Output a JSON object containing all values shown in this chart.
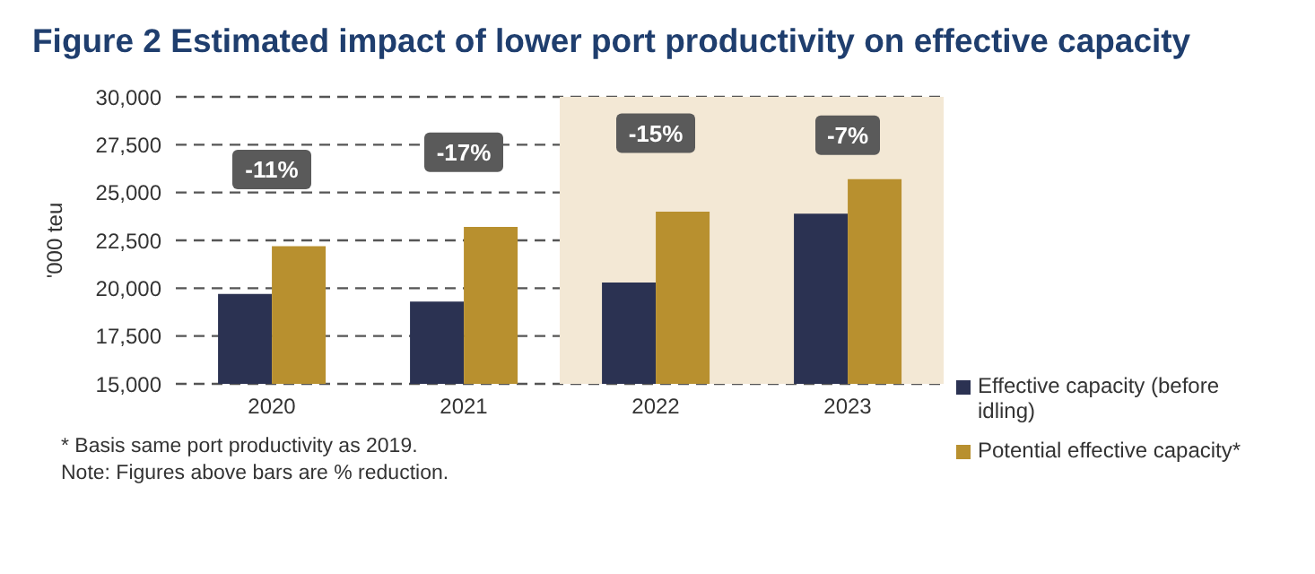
{
  "chart_data": {
    "type": "bar",
    "title": "Figure 2 Estimated impact of lower port productivity on effective capacity",
    "ylabel": "'000 teu",
    "categories": [
      "2020",
      "2021",
      "2022",
      "2023"
    ],
    "series": [
      {
        "name": "Effective capacity (before idling)",
        "color": "#2b3252",
        "values": [
          19700,
          19300,
          20300,
          23900
        ]
      },
      {
        "name": "Potential effective capacity*",
        "color": "#b8902f",
        "values": [
          22200,
          23200,
          24000,
          25700
        ]
      }
    ],
    "ylim": [
      15000,
      30000
    ],
    "yticks": [
      {
        "value": 15000,
        "label": "15,000"
      },
      {
        "value": 17500,
        "label": "17,500"
      },
      {
        "value": 20000,
        "label": "20,000"
      },
      {
        "value": 22500,
        "label": "22,500"
      },
      {
        "value": 25000,
        "label": "25,000"
      },
      {
        "value": 27500,
        "label": "27,500"
      },
      {
        "value": 30000,
        "label": "30,000"
      }
    ],
    "grid": "y",
    "legend": "right",
    "bands": [
      {
        "axis": "x",
        "from": "2022",
        "to": "2023",
        "color": "#f3e8d5"
      }
    ],
    "annotations": [
      {
        "text": "-11%",
        "x": "2020",
        "y": 26200
      },
      {
        "text": "-17%",
        "x": "2021",
        "y": 27100
      },
      {
        "text": "-15%",
        "x": "2022",
        "y": 28100
      },
      {
        "text": "-7%",
        "x": "2023",
        "y": 28000
      },
      "* Basis same port productivity as 2019.",
      "Note: Figures above bars are % reduction."
    ]
  }
}
